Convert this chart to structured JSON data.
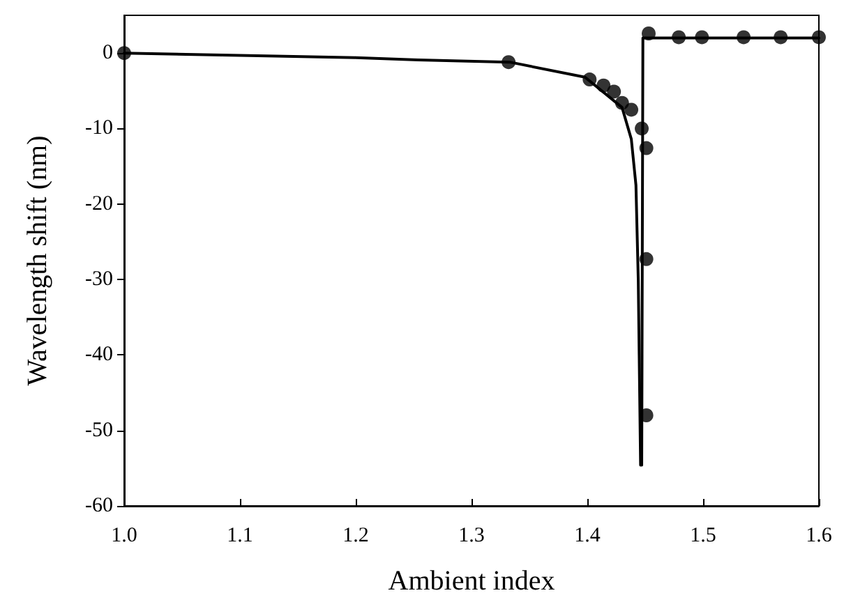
{
  "chart_data": {
    "type": "scatter",
    "xlabel": "Ambient index",
    "ylabel": "Wavelength shift (nm)",
    "xlim": [
      1.0,
      1.6
    ],
    "xticks": [
      {
        "value": 1.0,
        "label": "1.0"
      },
      1.1,
      1.2,
      1.3,
      1.4,
      1.5,
      1.6
    ],
    "ylim": [
      -60,
      5
    ],
    "yticks": [
      -60,
      -50,
      -40,
      -30,
      -20,
      -10,
      0
    ],
    "series": [
      {
        "type": "line",
        "color": "#000000",
        "marker": "none",
        "line_style": "solid",
        "x": [
          1.0,
          1.1,
          1.2,
          1.254,
          1.333,
          1.398,
          1.43,
          1.438,
          1.442,
          1.444,
          1.446
        ],
        "values": [
          0,
          -0.3,
          -0.6,
          -0.9,
          -1.2,
          -3.2,
          -7.2,
          -11.4,
          -17.5,
          -30,
          -54.6
        ]
      },
      {
        "type": "line",
        "color": "#000000",
        "marker": "none",
        "line_style": "solid",
        "x": [
          1.447,
          1.448,
          1.6
        ],
        "values": [
          -54.6,
          2,
          2
        ]
      },
      {
        "color": "#000000",
        "marker": "circle",
        "x": [
          1.0,
          1.332,
          1.402,
          1.414,
          1.423,
          1.43,
          1.438,
          1.447,
          1.451,
          1.451,
          1.451,
          1.453,
          1.479,
          1.499,
          1.535,
          1.567,
          1.6
        ],
        "values": [
          0,
          -1.2,
          -3.5,
          -4.3,
          -5.1,
          -6.6,
          -7.5,
          -10.0,
          -12.6,
          -27.3,
          -48.0,
          2.6,
          2.1,
          2.1,
          2.1,
          2.1,
          2.1
        ]
      }
    ]
  }
}
